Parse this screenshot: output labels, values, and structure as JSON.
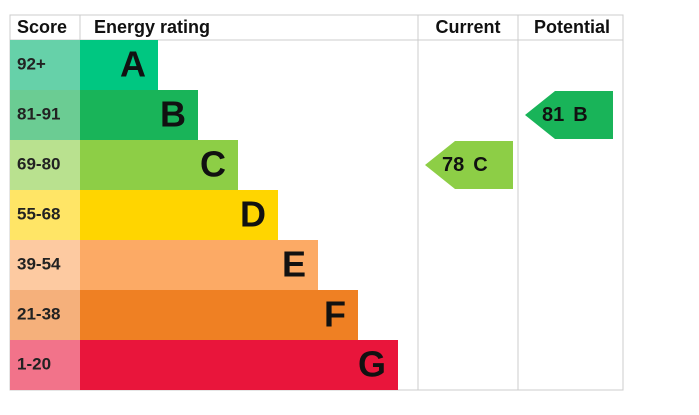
{
  "chart_data": {
    "type": "epc",
    "headers": {
      "score": "Score",
      "rating": "Energy rating",
      "current": "Current",
      "potential": "Potential"
    },
    "categories": [
      "92+",
      "81-91",
      "69-80",
      "55-68",
      "39-54",
      "21-38",
      "1-20"
    ],
    "letters": [
      "A",
      "B",
      "C",
      "D",
      "E",
      "F",
      "G"
    ],
    "colors": [
      "#00c781",
      "#19b459",
      "#8dce46",
      "#ffd500",
      "#fcaa65",
      "#ef8023",
      "#e9153b"
    ],
    "score_colors": [
      "#66d1a9",
      "#6bcc93",
      "#b9e18f",
      "#ffe566",
      "#fdcaa1",
      "#f5b07b",
      "#f2738a"
    ],
    "current": {
      "value": 78,
      "letter": "C"
    },
    "potential": {
      "value": 81,
      "letter": "B"
    }
  }
}
